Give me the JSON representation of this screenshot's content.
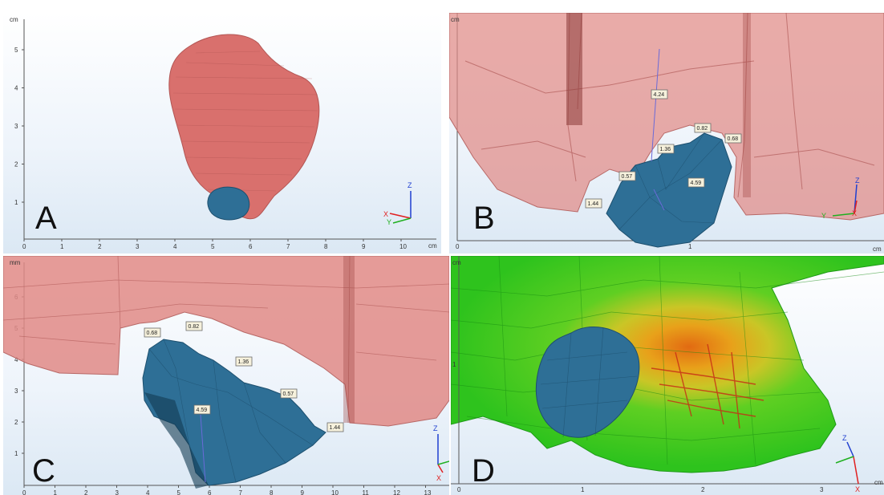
{
  "panels": {
    "A": {
      "letter": "A",
      "y_unit": "cm",
      "x_unit": "cm",
      "x_ticks": [
        "0",
        "1",
        "2",
        "3",
        "4",
        "5",
        "6",
        "7",
        "8",
        "9",
        "10"
      ],
      "y_ticks": [
        "1",
        "2",
        "3",
        "4",
        "5"
      ],
      "axes": {
        "z": "Z",
        "x": "X",
        "y": "Y"
      }
    },
    "B": {
      "letter": "B",
      "y_unit": "cm",
      "x_unit": "cm",
      "x_ticks": [
        "0",
        "1"
      ],
      "measurements": [
        "4.24",
        "0.82",
        "1.36",
        "0.68",
        "0.57",
        "4.59",
        "1.44"
      ],
      "axes": {
        "z": "Z",
        "x": "X",
        "y": "Y"
      }
    },
    "C": {
      "letter": "C",
      "y_unit": "mm",
      "x_ticks": [
        "0",
        "1",
        "2",
        "3",
        "4",
        "5",
        "6",
        "7",
        "8",
        "9",
        "10",
        "11",
        "12",
        "13"
      ],
      "y_ticks": [
        "1",
        "2",
        "3",
        "4",
        "5",
        "6"
      ],
      "measurements": [
        "0.68",
        "0.82",
        "1.36",
        "0.57",
        "4.59",
        "1.44"
      ],
      "axes": {
        "z": "Z",
        "x": "X"
      }
    },
    "D": {
      "letter": "D",
      "y_unit": "cm",
      "x_unit": "cm",
      "x_ticks": [
        "0",
        "1",
        "2",
        "3"
      ],
      "y_ticks": [
        "1"
      ],
      "axes": {
        "z": "Z",
        "x": "X"
      }
    }
  },
  "colors": {
    "tissue": "#d9706d",
    "tissue_translucent": "#e08a86",
    "tumor": "#2e6f96",
    "heatmap_low": "#27c51f",
    "heatmap_high": "#d63a1c",
    "axis_z": "#1f3fd0",
    "axis_x": "#e02020",
    "axis_y": "#20b020"
  }
}
